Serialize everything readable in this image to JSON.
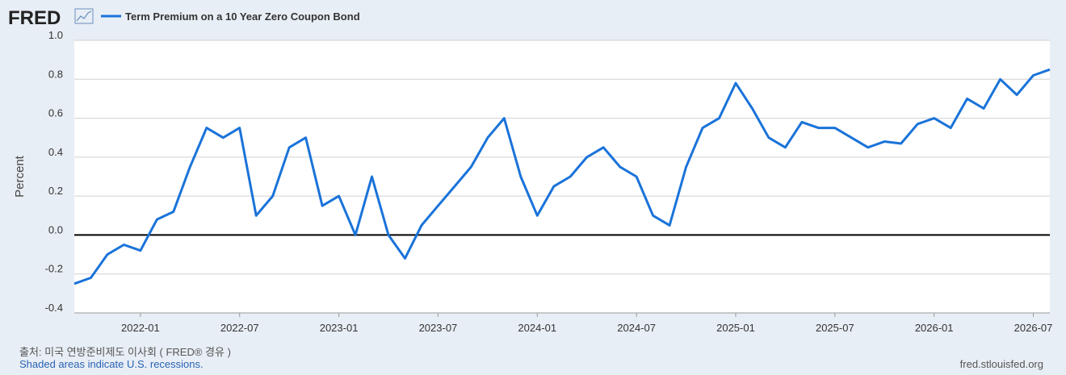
{
  "chart_data": {
    "type": "line",
    "logo": "FRED",
    "title": "Term Premium on a 10 Year Zero Coupon Bond",
    "ylabel": "Percent",
    "source": "출처: 미국 연방준비제도 이사회 ( FRED® 경유 )",
    "note": "Shaded areas indicate U.S. recessions.",
    "site": "fred.stlouisfed.org",
    "x": [
      "2021-09",
      "2021-10",
      "2021-11",
      "2021-12",
      "2022-01",
      "2022-02",
      "2022-03",
      "2022-04",
      "2022-05",
      "2022-06",
      "2022-07",
      "2022-08",
      "2022-09",
      "2022-10",
      "2022-11",
      "2022-12",
      "2023-01",
      "2023-02",
      "2023-03",
      "2023-04",
      "2023-05",
      "2023-06",
      "2023-07",
      "2023-08",
      "2023-09",
      "2023-10",
      "2023-11",
      "2023-12",
      "2024-01",
      "2024-02",
      "2024-03",
      "2024-04",
      "2024-05",
      "2024-06",
      "2024-07",
      "2024-08",
      "2024-09",
      "2024-10",
      "2024-11",
      "2024-12",
      "2025-01",
      "2025-02",
      "2025-03",
      "2025-04",
      "2025-05",
      "2025-06",
      "2025-07",
      "2025-08",
      "2025-09",
      "2025-10",
      "2025-11",
      "2025-12",
      "2026-01",
      "2026-02",
      "2026-03",
      "2026-04",
      "2026-05",
      "2026-06",
      "2026-07",
      "2026-08"
    ],
    "series": [
      {
        "name": "Term Premium on a 10 Year Zero Coupon Bond",
        "color": "#1a73d9",
        "values": [
          -0.25,
          -0.22,
          -0.1,
          -0.05,
          -0.08,
          0.08,
          0.12,
          0.35,
          0.55,
          0.5,
          0.55,
          0.1,
          0.2,
          0.45,
          0.5,
          0.15,
          0.2,
          0.0,
          0.3,
          0.0,
          -0.12,
          0.05,
          0.15,
          0.25,
          0.35,
          0.5,
          0.6,
          0.3,
          0.1,
          0.25,
          0.3,
          0.4,
          0.45,
          0.35,
          0.3,
          0.1,
          0.05,
          0.35,
          0.55,
          0.6,
          0.78,
          0.65,
          0.5,
          0.45,
          0.58,
          0.55,
          0.55,
          0.5,
          0.45,
          0.48,
          0.47,
          0.57,
          0.6,
          0.55,
          0.7,
          0.65,
          0.8,
          0.72,
          0.82,
          0.85
        ]
      }
    ],
    "xlim": [
      "2021-09",
      "2026-08"
    ],
    "xticks": [
      "2022-01",
      "2022-07",
      "2023-01",
      "2023-07",
      "2024-01",
      "2024-07",
      "2025-01",
      "2025-07",
      "2026-01",
      "2026-07"
    ],
    "ylim": [
      -0.4,
      1
    ],
    "yticks": [
      {
        "value": 1,
        "label": "1.0"
      },
      0.8,
      0.6,
      0.4,
      0.2,
      {
        "value": 0,
        "label": "0.0"
      },
      -0.2,
      -0.4
    ],
    "grid": true
  }
}
